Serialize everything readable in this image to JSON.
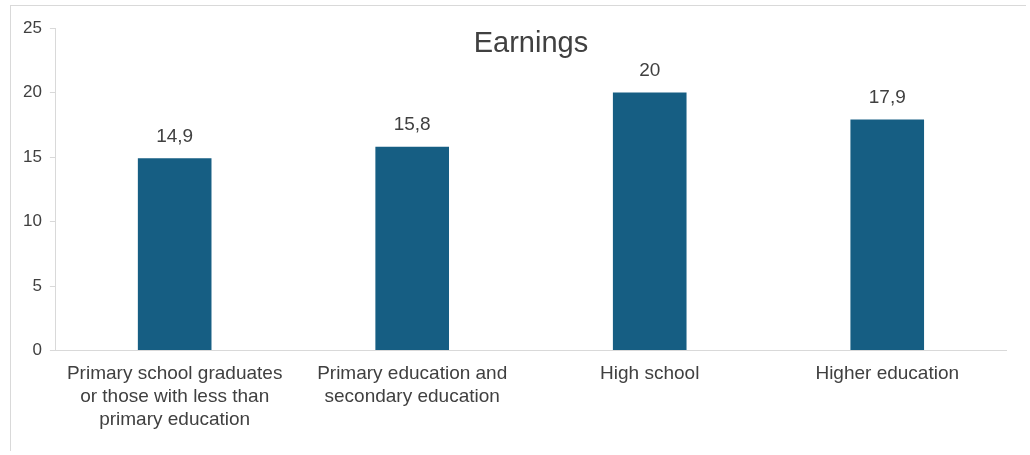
{
  "chart_data": {
    "type": "bar",
    "title": "Earnings",
    "categories": [
      "Primary school graduates or those with less than primary education",
      "Primary education and secondary education",
      "High school",
      "Higher education"
    ],
    "values": [
      14.9,
      15.8,
      20,
      17.9
    ],
    "value_labels": [
      "14,9",
      "15,8",
      "20",
      "17,9"
    ],
    "color": "#165e83",
    "ylim": [
      0,
      25
    ],
    "yticks": [
      0,
      5,
      10,
      15,
      20,
      25
    ],
    "grid": false,
    "legend": false
  }
}
